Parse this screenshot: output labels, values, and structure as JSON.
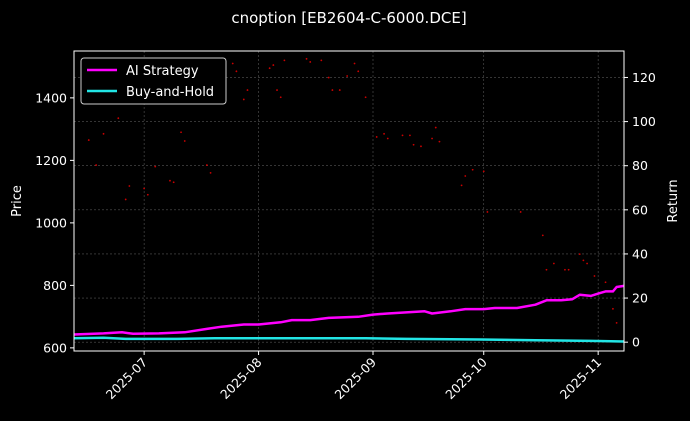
{
  "chart_data": {
    "type": "line",
    "title": "cnoption [EB2604-C-6000.DCE]",
    "xlabel": "",
    "ylabel_left": "Price",
    "ylabel_right": "Return",
    "x_range": [
      "2025-06-12",
      "2025-11-08"
    ],
    "ylim_left": [
      590,
      1550
    ],
    "ylim_right": [
      -4,
      132
    ],
    "x_ticks": [
      "2025-07",
      "2025-08",
      "2025-09",
      "2025-10",
      "2025-11"
    ],
    "y_ticks_left": [
      600,
      800,
      1000,
      1200,
      1400
    ],
    "y_ticks_right": [
      0,
      20,
      40,
      60,
      80,
      100,
      120
    ],
    "grid": true,
    "legend_position": "top-left",
    "colors": {
      "ai": "#ff00ff",
      "bh": "#22e5e5",
      "price": "#cc0000",
      "background": "#000000"
    },
    "price_points": {
      "axis": "left",
      "points": [
        [
          "2025-06-16",
          1265
        ],
        [
          "2025-06-18",
          1185
        ],
        [
          "2025-06-20",
          1285
        ],
        [
          "2025-06-24",
          1335
        ],
        [
          "2025-06-26",
          1075
        ],
        [
          "2025-06-27",
          1118
        ],
        [
          "2025-07-01",
          1110
        ],
        [
          "2025-07-02",
          1090
        ],
        [
          "2025-07-04",
          1180
        ],
        [
          "2025-07-08",
          1135
        ],
        [
          "2025-07-09",
          1130
        ],
        [
          "2025-07-11",
          1290
        ],
        [
          "2025-07-12",
          1262
        ],
        [
          "2025-07-18",
          1185
        ],
        [
          "2025-07-19",
          1160
        ],
        [
          "2025-07-25",
          1510
        ],
        [
          "2025-07-26",
          1485
        ],
        [
          "2025-07-28",
          1395
        ],
        [
          "2025-07-29",
          1425
        ],
        [
          "2025-08-04",
          1495
        ],
        [
          "2025-08-05",
          1505
        ],
        [
          "2025-08-06",
          1425
        ],
        [
          "2025-08-07",
          1402
        ],
        [
          "2025-08-08",
          1520
        ],
        [
          "2025-08-14",
          1525
        ],
        [
          "2025-08-15",
          1515
        ],
        [
          "2025-08-18",
          1520
        ],
        [
          "2025-08-20",
          1465
        ],
        [
          "2025-08-21",
          1425
        ],
        [
          "2025-08-23",
          1425
        ],
        [
          "2025-08-25",
          1470
        ],
        [
          "2025-08-27",
          1510
        ],
        [
          "2025-08-28",
          1485
        ],
        [
          "2025-08-30",
          1402
        ],
        [
          "2025-09-02",
          1275
        ],
        [
          "2025-09-04",
          1285
        ],
        [
          "2025-09-05",
          1270
        ],
        [
          "2025-09-09",
          1280
        ],
        [
          "2025-09-11",
          1280
        ],
        [
          "2025-09-12",
          1250
        ],
        [
          "2025-09-14",
          1245
        ],
        [
          "2025-09-17",
          1270
        ],
        [
          "2025-09-18",
          1305
        ],
        [
          "2025-09-19",
          1260
        ],
        [
          "2025-09-25",
          1120
        ],
        [
          "2025-09-26",
          1150
        ],
        [
          "2025-09-28",
          1170
        ],
        [
          "2025-10-01",
          1165
        ],
        [
          "2025-10-02",
          1035
        ],
        [
          "2025-10-11",
          1035
        ],
        [
          "2025-10-17",
          960
        ],
        [
          "2025-10-18",
          850
        ],
        [
          "2025-10-20",
          870
        ],
        [
          "2025-10-23",
          850
        ],
        [
          "2025-10-24",
          850
        ],
        [
          "2025-10-27",
          900
        ],
        [
          "2025-10-28",
          880
        ],
        [
          "2025-10-29",
          870
        ],
        [
          "2025-10-31",
          830
        ],
        [
          "2025-11-03",
          810
        ],
        [
          "2025-11-05",
          725
        ],
        [
          "2025-11-06",
          680
        ]
      ]
    },
    "series": [
      {
        "name": "AI Strategy",
        "axis": "right",
        "points": [
          [
            "2025-06-12",
            3.5
          ],
          [
            "2025-06-20",
            4
          ],
          [
            "2025-06-25",
            4.5
          ],
          [
            "2025-06-28",
            3.8
          ],
          [
            "2025-07-05",
            4
          ],
          [
            "2025-07-12",
            4.5
          ],
          [
            "2025-07-18",
            6
          ],
          [
            "2025-07-22",
            7
          ],
          [
            "2025-07-28",
            8
          ],
          [
            "2025-08-01",
            8
          ],
          [
            "2025-08-07",
            9
          ],
          [
            "2025-08-10",
            10
          ],
          [
            "2025-08-15",
            10
          ],
          [
            "2025-08-20",
            11
          ],
          [
            "2025-08-28",
            11.5
          ],
          [
            "2025-09-01",
            12.5
          ],
          [
            "2025-09-05",
            13
          ],
          [
            "2025-09-10",
            13.5
          ],
          [
            "2025-09-15",
            14
          ],
          [
            "2025-09-17",
            13
          ],
          [
            "2025-09-22",
            14
          ],
          [
            "2025-09-26",
            15
          ],
          [
            "2025-10-01",
            15
          ],
          [
            "2025-10-04",
            15.5
          ],
          [
            "2025-10-10",
            15.5
          ],
          [
            "2025-10-15",
            17
          ],
          [
            "2025-10-18",
            19
          ],
          [
            "2025-10-22",
            19
          ],
          [
            "2025-10-25",
            19.5
          ],
          [
            "2025-10-27",
            21.5
          ],
          [
            "2025-10-30",
            21
          ],
          [
            "2025-11-01",
            22
          ],
          [
            "2025-11-03",
            23
          ],
          [
            "2025-11-05",
            23
          ],
          [
            "2025-11-06",
            25
          ],
          [
            "2025-11-08",
            25.5
          ]
        ]
      },
      {
        "name": "Buy-and-Hold",
        "axis": "right",
        "points": [
          [
            "2025-06-12",
            1.8
          ],
          [
            "2025-06-20",
            2
          ],
          [
            "2025-06-26",
            1.5
          ],
          [
            "2025-07-10",
            1.5
          ],
          [
            "2025-07-20",
            1.8
          ],
          [
            "2025-08-10",
            1.8
          ],
          [
            "2025-08-30",
            1.8
          ],
          [
            "2025-09-10",
            1.5
          ],
          [
            "2025-09-30",
            1.2
          ],
          [
            "2025-10-15",
            0.9
          ],
          [
            "2025-10-30",
            0.6
          ],
          [
            "2025-11-08",
            0.3
          ]
        ]
      }
    ]
  }
}
